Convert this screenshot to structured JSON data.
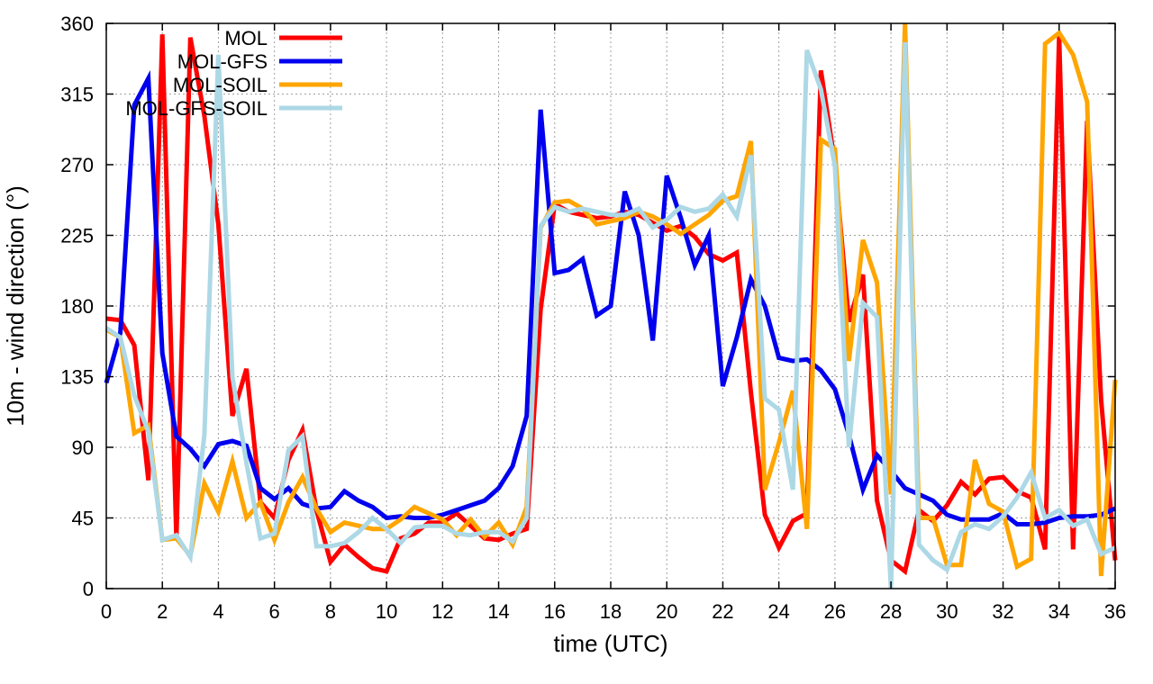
{
  "chart_data": {
    "type": "line",
    "title": "",
    "xlabel": "time (UTC)",
    "ylabel": "10m - wind direction (°)",
    "xlim": [
      0,
      36
    ],
    "ylim": [
      0,
      360
    ],
    "xticks": [
      0,
      2,
      4,
      6,
      8,
      10,
      12,
      14,
      16,
      18,
      20,
      22,
      24,
      26,
      28,
      30,
      32,
      34,
      36
    ],
    "yticks": [
      0,
      45,
      90,
      135,
      180,
      225,
      270,
      315,
      360
    ],
    "grid": true,
    "legend_position": "top-left",
    "series": [
      {
        "name": "MOL",
        "color": "#ff0000",
        "points": [
          [
            0,
            172
          ],
          [
            0.5,
            171
          ],
          [
            1,
            155
          ],
          [
            1.5,
            69
          ],
          [
            2,
            353
          ],
          [
            2.5,
            32
          ],
          [
            3,
            351
          ],
          [
            3.5,
            301
          ],
          [
            4,
            232
          ],
          [
            4.5,
            110
          ],
          [
            5,
            140
          ],
          [
            5.5,
            55
          ],
          [
            6,
            45
          ],
          [
            6.5,
            82
          ],
          [
            7,
            101
          ],
          [
            7.5,
            50
          ],
          [
            8,
            17
          ],
          [
            8.5,
            28
          ],
          [
            9,
            20
          ],
          [
            9.5,
            13
          ],
          [
            10,
            11
          ],
          [
            10.5,
            32
          ],
          [
            11,
            35
          ],
          [
            11.5,
            42
          ],
          [
            12,
            42
          ],
          [
            12.5,
            48
          ],
          [
            13,
            40
          ],
          [
            13.5,
            32
          ],
          [
            14,
            31
          ],
          [
            14.5,
            35
          ],
          [
            15,
            38
          ],
          [
            15.5,
            178
          ],
          [
            16,
            245
          ],
          [
            16.5,
            240
          ],
          [
            17,
            238
          ],
          [
            17.5,
            236
          ],
          [
            18,
            237
          ],
          [
            18.5,
            240
          ],
          [
            19,
            238
          ],
          [
            19.5,
            233
          ],
          [
            20,
            228
          ],
          [
            20.5,
            231
          ],
          [
            21,
            224
          ],
          [
            21.5,
            213
          ],
          [
            22,
            209
          ],
          [
            22.5,
            214
          ],
          [
            23,
            125
          ],
          [
            23.5,
            47
          ],
          [
            24,
            26
          ],
          [
            24.5,
            43
          ],
          [
            25,
            48
          ],
          [
            25.5,
            330
          ],
          [
            26,
            271
          ],
          [
            26.5,
            170
          ],
          [
            27,
            200
          ],
          [
            27.5,
            56
          ],
          [
            28,
            18
          ],
          [
            28.5,
            11
          ],
          [
            29,
            50
          ],
          [
            29.5,
            43
          ],
          [
            30,
            53
          ],
          [
            30.5,
            68
          ],
          [
            31,
            60
          ],
          [
            31.5,
            70
          ],
          [
            32,
            71
          ],
          [
            32.5,
            62
          ],
          [
            33,
            58
          ],
          [
            33.5,
            25
          ],
          [
            34,
            352
          ],
          [
            34.5,
            25
          ],
          [
            35,
            298
          ],
          [
            35.5,
            120
          ],
          [
            36,
            18
          ]
        ]
      },
      {
        "name": "MOL-GFS",
        "color": "#0000ee",
        "points": [
          [
            0,
            131
          ],
          [
            0.5,
            163
          ],
          [
            1,
            308
          ],
          [
            1.5,
            325
          ],
          [
            2,
            150
          ],
          [
            2.5,
            97
          ],
          [
            3,
            89
          ],
          [
            3.5,
            78
          ],
          [
            4,
            92
          ],
          [
            4.5,
            94
          ],
          [
            5,
            91
          ],
          [
            5.5,
            64
          ],
          [
            6,
            57
          ],
          [
            6.5,
            64
          ],
          [
            7,
            54
          ],
          [
            7.5,
            51
          ],
          [
            8,
            52
          ],
          [
            8.5,
            62
          ],
          [
            9,
            56
          ],
          [
            9.5,
            52
          ],
          [
            10,
            45
          ],
          [
            10.5,
            46
          ],
          [
            11,
            45
          ],
          [
            11.5,
            45
          ],
          [
            12,
            47
          ],
          [
            12.5,
            50
          ],
          [
            13,
            53
          ],
          [
            13.5,
            56
          ],
          [
            14,
            64
          ],
          [
            14.5,
            78
          ],
          [
            15,
            110
          ],
          [
            15.5,
            305
          ],
          [
            16,
            201
          ],
          [
            16.5,
            203
          ],
          [
            17,
            210
          ],
          [
            17.5,
            174
          ],
          [
            18,
            180
          ],
          [
            18.5,
            253
          ],
          [
            19,
            225
          ],
          [
            19.5,
            158
          ],
          [
            20,
            263
          ],
          [
            20.5,
            236
          ],
          [
            21,
            206
          ],
          [
            21.5,
            225
          ],
          [
            22,
            129
          ],
          [
            22.5,
            160
          ],
          [
            23,
            197
          ],
          [
            23.5,
            180
          ],
          [
            24,
            147
          ],
          [
            24.5,
            145
          ],
          [
            25,
            146
          ],
          [
            25.5,
            139
          ],
          [
            26,
            127
          ],
          [
            26.5,
            98
          ],
          [
            27,
            63
          ],
          [
            27.5,
            85
          ],
          [
            28,
            75
          ],
          [
            28.5,
            64
          ],
          [
            29,
            60
          ],
          [
            29.5,
            56
          ],
          [
            30,
            47
          ],
          [
            30.5,
            44
          ],
          [
            31,
            44
          ],
          [
            31.5,
            44
          ],
          [
            32,
            48
          ],
          [
            32.5,
            41
          ],
          [
            33,
            41
          ],
          [
            33.5,
            42
          ],
          [
            34,
            45
          ],
          [
            34.5,
            46
          ],
          [
            35,
            46
          ],
          [
            35.5,
            47
          ],
          [
            36,
            51
          ]
        ]
      },
      {
        "name": "MOL-SOIL",
        "color": "#ffa500",
        "points": [
          [
            0,
            165
          ],
          [
            0.5,
            160
          ],
          [
            1,
            99
          ],
          [
            1.5,
            104
          ],
          [
            2,
            31
          ],
          [
            2.5,
            32
          ],
          [
            3,
            21
          ],
          [
            3.5,
            67
          ],
          [
            4,
            49
          ],
          [
            4.5,
            81
          ],
          [
            5,
            45
          ],
          [
            5.5,
            55
          ],
          [
            6,
            31
          ],
          [
            6.5,
            55
          ],
          [
            7,
            71
          ],
          [
            7.5,
            51
          ],
          [
            8,
            36
          ],
          [
            8.5,
            42
          ],
          [
            9,
            40
          ],
          [
            9.5,
            38
          ],
          [
            10,
            38
          ],
          [
            10.5,
            44
          ],
          [
            11,
            52
          ],
          [
            11.5,
            48
          ],
          [
            12,
            44
          ],
          [
            12.5,
            34
          ],
          [
            13,
            44
          ],
          [
            13.5,
            33
          ],
          [
            14,
            42
          ],
          [
            14.5,
            28
          ],
          [
            15,
            52
          ],
          [
            15.5,
            230
          ],
          [
            16,
            246
          ],
          [
            16.5,
            247
          ],
          [
            17,
            242
          ],
          [
            17.5,
            232
          ],
          [
            18,
            234
          ],
          [
            18.5,
            236
          ],
          [
            19,
            240
          ],
          [
            19.5,
            237
          ],
          [
            20,
            232
          ],
          [
            20.5,
            226
          ],
          [
            21,
            232
          ],
          [
            21.5,
            238
          ],
          [
            22,
            247
          ],
          [
            22.5,
            250
          ],
          [
            23,
            285
          ],
          [
            23.5,
            63
          ],
          [
            24,
            93
          ],
          [
            24.5,
            126
          ],
          [
            25,
            38
          ],
          [
            25.5,
            286
          ],
          [
            26,
            280
          ],
          [
            26.5,
            145
          ],
          [
            27,
            222
          ],
          [
            27.5,
            195
          ],
          [
            28,
            60
          ],
          [
            28.5,
            360
          ],
          [
            29,
            45
          ],
          [
            29.5,
            45
          ],
          [
            30,
            15
          ],
          [
            30.5,
            15
          ],
          [
            31,
            82
          ],
          [
            31.5,
            54
          ],
          [
            32,
            49
          ],
          [
            32.5,
            14
          ],
          [
            33,
            19
          ],
          [
            33.5,
            347
          ],
          [
            34,
            354
          ],
          [
            34.5,
            340
          ],
          [
            35,
            310
          ],
          [
            35.5,
            8
          ],
          [
            36,
            133
          ]
        ]
      },
      {
        "name": "MOL-GFS-SOIL",
        "color": "#add8e6",
        "points": [
          [
            0,
            166
          ],
          [
            0.5,
            160
          ],
          [
            1,
            123
          ],
          [
            1.5,
            100
          ],
          [
            2,
            31
          ],
          [
            2.5,
            34
          ],
          [
            3,
            20
          ],
          [
            3.5,
            98
          ],
          [
            4,
            340
          ],
          [
            4.5,
            135
          ],
          [
            5,
            80
          ],
          [
            5.5,
            32
          ],
          [
            6,
            35
          ],
          [
            6.5,
            88
          ],
          [
            7,
            97
          ],
          [
            7.5,
            27
          ],
          [
            8,
            27
          ],
          [
            8.5,
            29
          ],
          [
            9,
            36
          ],
          [
            9.5,
            45
          ],
          [
            10,
            38
          ],
          [
            10.5,
            29
          ],
          [
            11,
            39
          ],
          [
            11.5,
            40
          ],
          [
            12,
            40
          ],
          [
            12.5,
            35
          ],
          [
            13,
            34
          ],
          [
            13.5,
            36
          ],
          [
            14,
            36
          ],
          [
            14.5,
            30
          ],
          [
            15,
            45
          ],
          [
            15.5,
            231
          ],
          [
            16,
            243
          ],
          [
            16.5,
            240
          ],
          [
            17,
            242
          ],
          [
            17.5,
            240
          ],
          [
            18,
            238
          ],
          [
            18.5,
            238
          ],
          [
            19,
            242
          ],
          [
            19.5,
            230
          ],
          [
            20,
            235
          ],
          [
            20.5,
            243
          ],
          [
            21,
            240
          ],
          [
            21.5,
            242
          ],
          [
            22,
            251
          ],
          [
            22.5,
            237
          ],
          [
            23,
            276
          ],
          [
            23.5,
            121
          ],
          [
            24,
            114
          ],
          [
            24.5,
            63
          ],
          [
            25,
            343
          ],
          [
            25.5,
            318
          ],
          [
            26,
            269
          ],
          [
            26.5,
            90
          ],
          [
            27,
            182
          ],
          [
            27.5,
            173
          ],
          [
            28,
            0
          ],
          [
            28.5,
            348
          ],
          [
            29,
            28
          ],
          [
            29.5,
            18
          ],
          [
            30,
            12
          ],
          [
            30.5,
            36
          ],
          [
            31,
            41
          ],
          [
            31.5,
            38
          ],
          [
            32,
            46
          ],
          [
            32.5,
            58
          ],
          [
            33,
            74
          ],
          [
            33.5,
            45
          ],
          [
            34,
            50
          ],
          [
            34.5,
            40
          ],
          [
            35,
            44
          ],
          [
            35.5,
            22
          ],
          [
            36,
            26
          ]
        ]
      }
    ]
  }
}
